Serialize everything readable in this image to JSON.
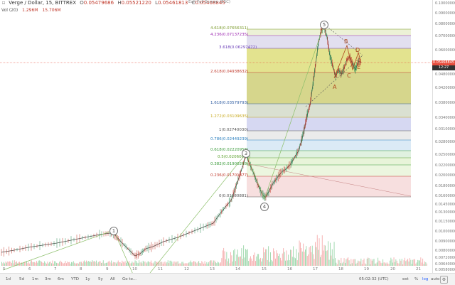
{
  "header": {
    "symbol": "Verge / Dollar, 15, BITTREX",
    "o_label": "O",
    "o_value": "0.05479686",
    "h_label": "H",
    "h_value": "0.05521220",
    "l_label": "L",
    "l_value": "0.05461813",
    "c_label": "C",
    "c_value": "0.05468845",
    "vol_label": "Vol (20)",
    "vol_value_1": "1.296M",
    "vol_value_2": "15.706M",
    "exit_fullscreen": "Exit Full Screen (ESC)"
  },
  "price_axis": {
    "ticks": [
      "0.10000000",
      "0.09000000",
      "0.08000000",
      "0.07000000",
      "0.06000000",
      "0.05000000",
      "0.04800000",
      "0.04200000",
      "0.03800000",
      "0.03400000",
      "0.03100000",
      "0.02800000",
      "0.02500000",
      "0.02200000",
      "0.02000000",
      "0.01800000",
      "0.01600000",
      "0.01450000",
      "0.01300000",
      "0.01150000",
      "0.01000000",
      "0.00900000",
      "0.00800000",
      "0.00720000",
      "0.00640000",
      "0.00580000"
    ],
    "current_price": "0.05468845",
    "current_time": "12:27",
    "badge_color": "#e74c3c",
    "timer_color": "#333333"
  },
  "time_axis": {
    "ticks": [
      "5",
      "6",
      "7",
      "8",
      "9",
      "10",
      "11",
      "12",
      "13",
      "14",
      "15",
      "16",
      "17",
      "18",
      "19",
      "20",
      "21"
    ]
  },
  "fib_levels": [
    {
      "label": "4.618(0.07656311)",
      "color": "#7a9a2a"
    },
    {
      "label": "4.236(0.07137235)",
      "color": "#9c27b0"
    },
    {
      "label": "3.618(0.06297472)",
      "color": "#6a3db8"
    },
    {
      "label": "2.618(0.04938632)",
      "color": "#c0392b"
    },
    {
      "label": "1.618(0.03579793)",
      "color": "#2c5aa0"
    },
    {
      "label": "1.272(0.03109635)",
      "color": "#c7a81a"
    },
    {
      "label": "1(0.02740030)",
      "color": "#555555"
    },
    {
      "label": "0.786(0.02449239)",
      "color": "#2a7fbf"
    },
    {
      "label": "0.618(0.02220958)",
      "color": "#3a9a3a"
    },
    {
      "label": "0.5(0.02060611)",
      "color": "#5aa02c"
    },
    {
      "label": "0.382(0.01900268)",
      "color": "#3a9a3a"
    },
    {
      "label": "0.236(0.01701877)",
      "color": "#c0392b"
    },
    {
      "label": "0(0.01380881)",
      "color": "#555555"
    }
  ],
  "waves": [
    "1",
    "2",
    "3",
    "4",
    "5"
  ],
  "abc": [
    "A",
    "B",
    "C",
    "D",
    "E"
  ],
  "toolbar": {
    "ranges": [
      "1d",
      "5d",
      "1m",
      "3m",
      "6m",
      "YTD",
      "1y",
      "5y",
      "All"
    ],
    "goto": "Go to...",
    "time": "05:02:32 (UTC)",
    "ext": "ext",
    "pct": "%",
    "log": "log",
    "auto": "auto"
  }
}
